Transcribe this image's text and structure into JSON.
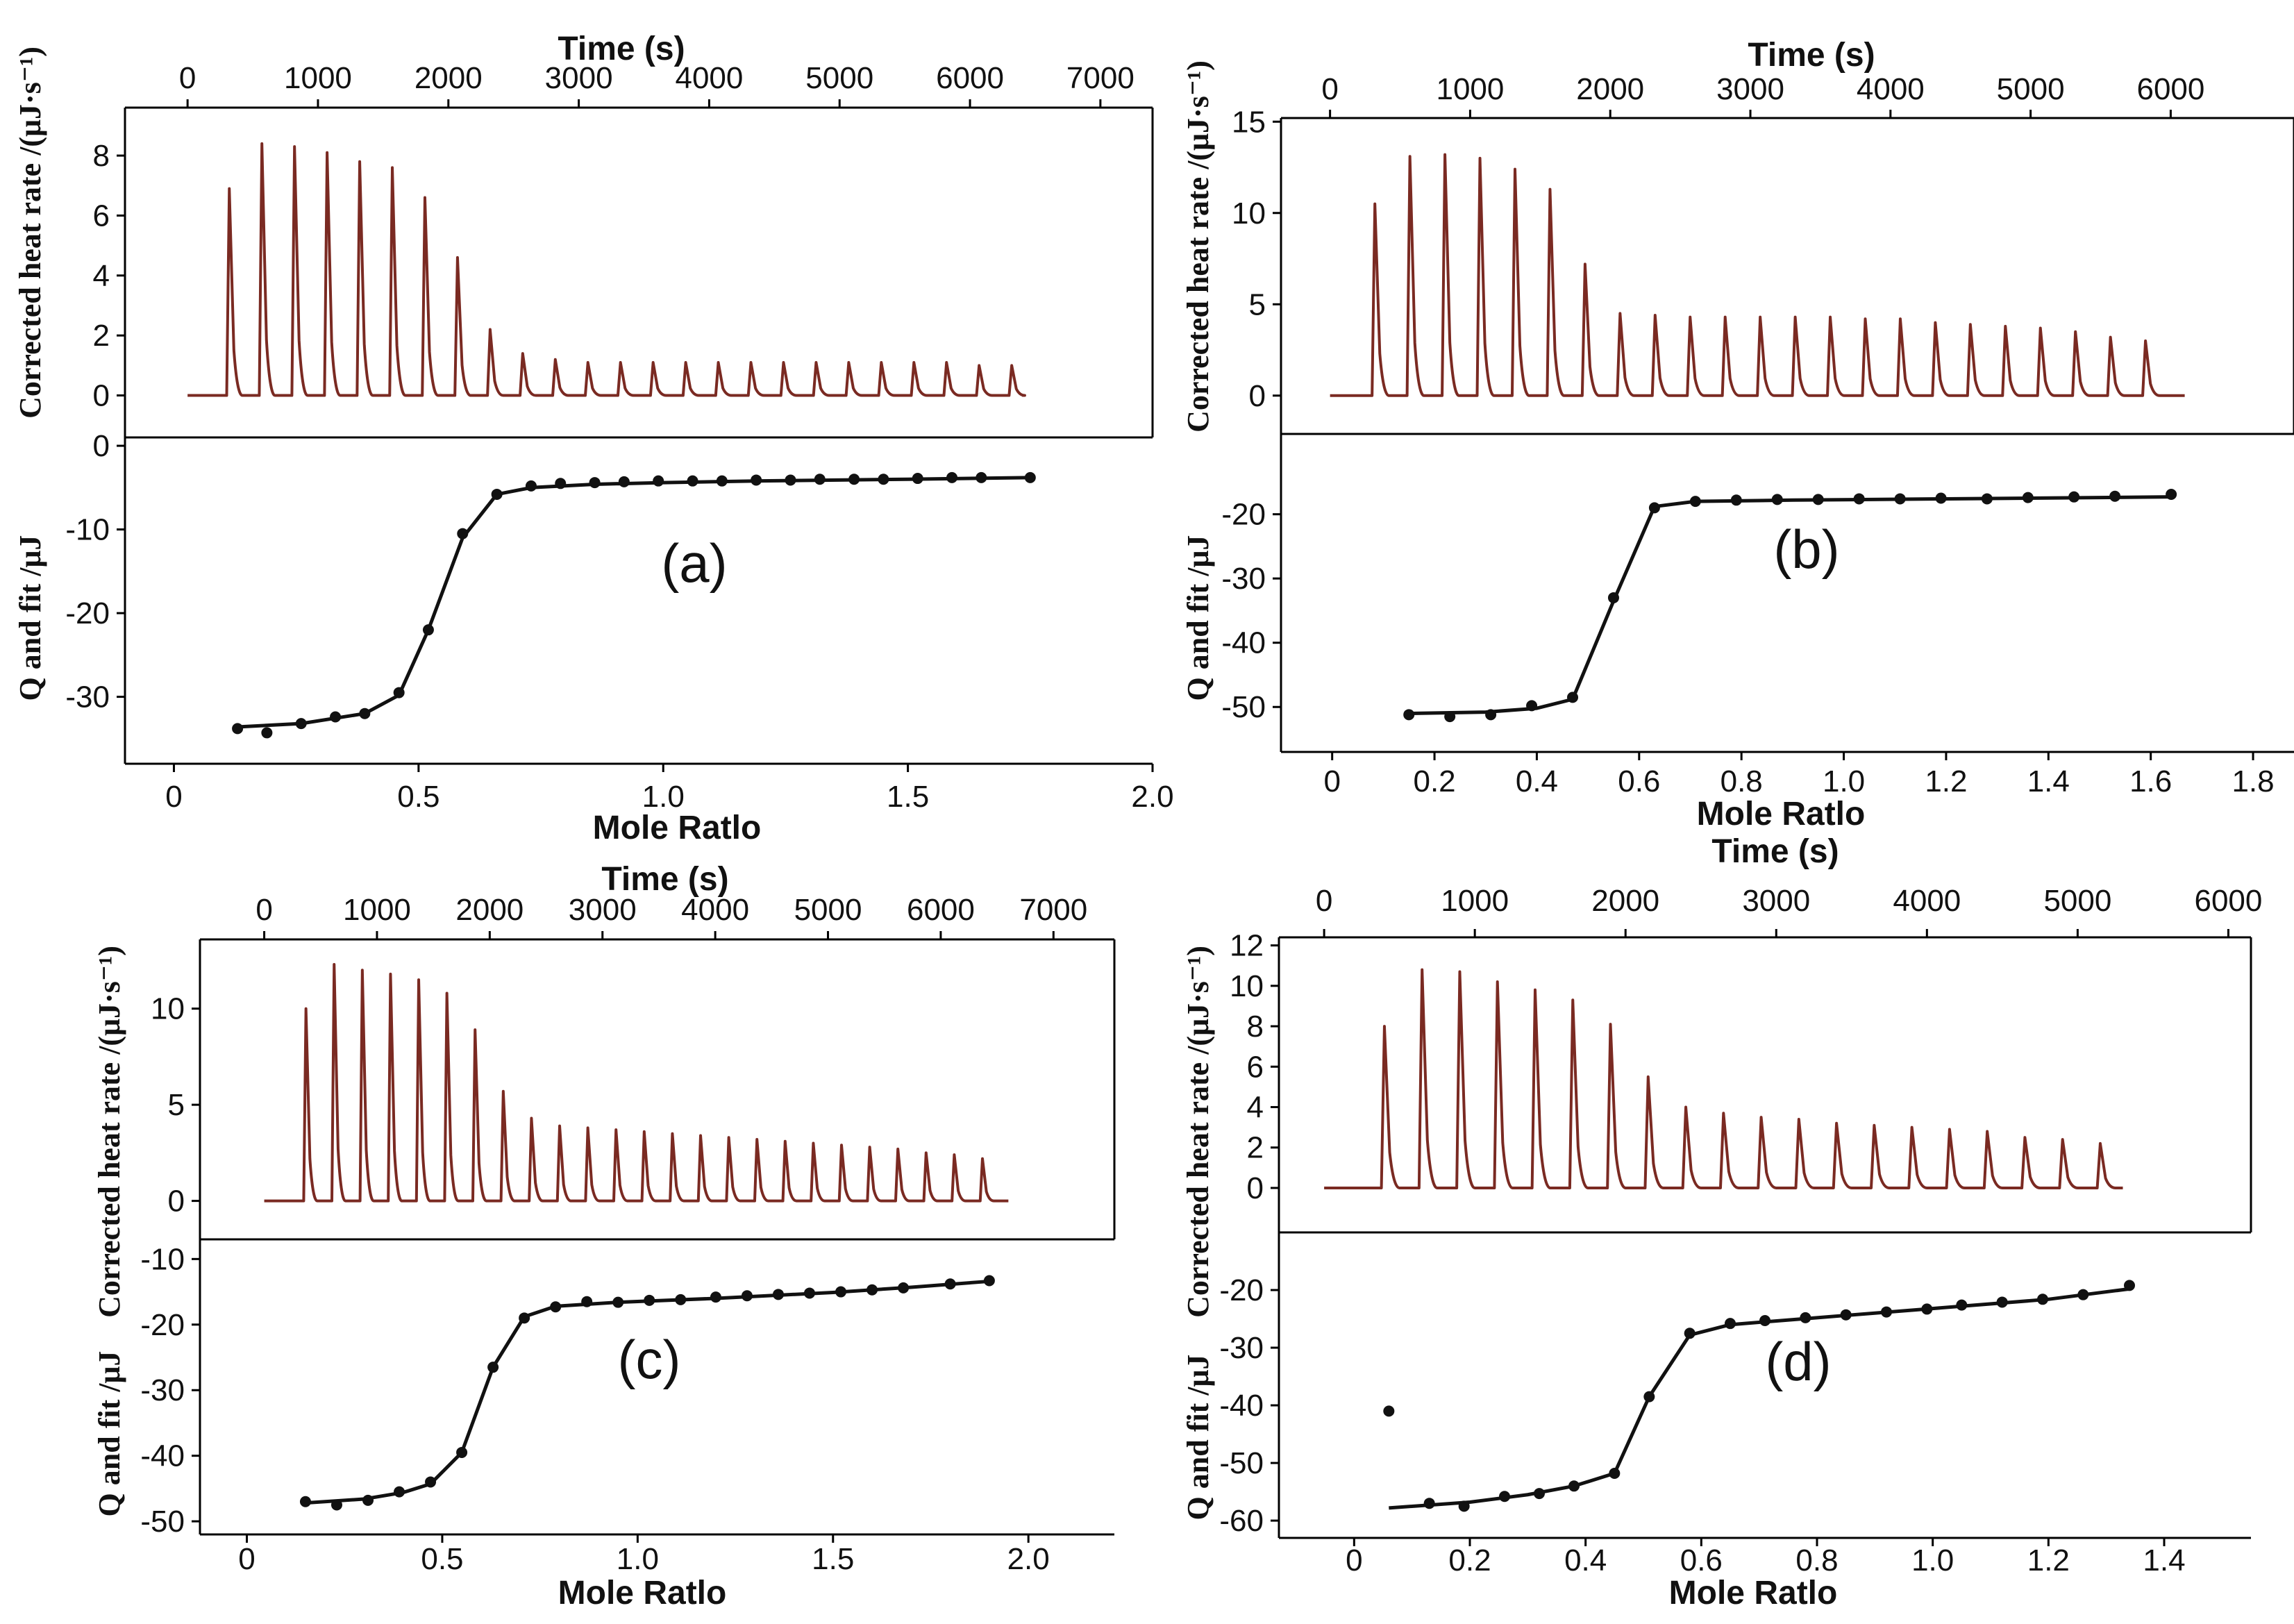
{
  "chart_data": [
    {
      "id": "a",
      "type": "line",
      "panel_label": "(a)",
      "top": {
        "title": "Time (s)",
        "ylabel": "Corrected heat rate /(μJ·s⁻¹)",
        "xlim": [
          -480,
          7400
        ],
        "ylim": [
          -1.4,
          9.6
        ],
        "xticks": [
          0,
          1000,
          2000,
          3000,
          4000,
          5000,
          6000,
          7000
        ],
        "xtick_labels": [
          "0",
          "1000",
          "2000",
          "3000",
          "4000",
          "5000",
          "6000",
          "7000"
        ],
        "yticks": [
          0,
          2,
          4,
          6,
          8
        ],
        "ytick_labels": [
          "0",
          "2",
          "4",
          "6",
          "8"
        ],
        "series": {
          "name": "Corrected heat rate",
          "color": "#7a2a22",
          "start_time": 0,
          "end_time": 6400,
          "peak_times": [
            300,
            550,
            800,
            1050,
            1300,
            1550,
            1800,
            2050,
            2300,
            2550,
            2800,
            3050,
            3300,
            3550,
            3800,
            4050,
            4300,
            4550,
            4800,
            5050,
            5300,
            5550,
            5800,
            6050,
            6300
          ],
          "peak_heights": [
            6.9,
            8.4,
            8.3,
            8.1,
            7.8,
            7.6,
            6.6,
            4.6,
            2.2,
            1.4,
            1.2,
            1.1,
            1.1,
            1.1,
            1.1,
            1.1,
            1.1,
            1.1,
            1.1,
            1.1,
            1.1,
            1.1,
            1.1,
            1.0,
            1.0
          ]
        }
      },
      "bottom": {
        "xlabel": "Mole Ratlo",
        "ylabel": "Q and fit /μJ",
        "xlim": [
          -0.1,
          2.0
        ],
        "ylim": [
          -38,
          1
        ],
        "xticks": [
          0,
          0.5,
          1.0,
          1.5,
          2.0
        ],
        "xtick_labels": [
          "0",
          "0.5",
          "1.0",
          "1.5",
          "2.0"
        ],
        "yticks": [
          0,
          -10,
          -20,
          -30
        ],
        "ytick_labels": [
          "0",
          "-10",
          "-20",
          "-30"
        ],
        "points_x": [
          0.13,
          0.19,
          0.26,
          0.33,
          0.39,
          0.46,
          0.52,
          0.59,
          0.66,
          0.73,
          0.79,
          0.86,
          0.92,
          0.99,
          1.06,
          1.12,
          1.19,
          1.26,
          1.32,
          1.39,
          1.45,
          1.52,
          1.59,
          1.65,
          1.75
        ],
        "points_y": [
          -33.8,
          -34.3,
          -33.2,
          -32.4,
          -32.0,
          -29.5,
          -22.0,
          -10.5,
          -5.8,
          -4.8,
          -4.5,
          -4.4,
          -4.3,
          -4.2,
          -4.2,
          -4.2,
          -4.1,
          -4.1,
          -4.0,
          -4.0,
          -4.0,
          -3.9,
          -3.8,
          -3.8,
          -3.8
        ],
        "fit_x": [
          0.13,
          0.26,
          0.39,
          0.46,
          0.52,
          0.59,
          0.66,
          0.73,
          0.86,
          1.0,
          1.2,
          1.5,
          1.75
        ],
        "fit_y": [
          -33.6,
          -33.2,
          -32.0,
          -29.8,
          -22.0,
          -11.0,
          -5.8,
          -5.0,
          -4.6,
          -4.4,
          -4.2,
          -4.0,
          -3.8
        ]
      }
    },
    {
      "id": "b",
      "type": "line",
      "panel_label": "(b)",
      "top": {
        "title": "Time (s)",
        "ylabel": "Corrected heat rate /(μJ·s⁻¹)",
        "xlim": [
          -350,
          6880
        ],
        "ylim": [
          -2.1,
          15.2
        ],
        "xticks": [
          0,
          1000,
          2000,
          3000,
          4000,
          5000,
          6000
        ],
        "xtick_labels": [
          "0",
          "1000",
          "2000",
          "3000",
          "4000",
          "5000",
          "6000"
        ],
        "yticks": [
          0,
          5,
          10,
          15
        ],
        "ytick_labels": [
          "0",
          "5",
          "10",
          "15"
        ],
        "series": {
          "name": "Corrected heat rate",
          "color": "#7a2a22",
          "start_time": 0,
          "end_time": 6100,
          "peak_times": [
            300,
            550,
            800,
            1050,
            1300,
            1550,
            1800,
            2050,
            2300,
            2550,
            2800,
            3050,
            3300,
            3550,
            3800,
            4050,
            4300,
            4550,
            4800,
            5050,
            5300,
            5550,
            5800
          ],
          "peak_heights": [
            10.5,
            13.1,
            13.2,
            13.0,
            12.4,
            11.3,
            7.2,
            4.5,
            4.4,
            4.3,
            4.3,
            4.3,
            4.3,
            4.3,
            4.2,
            4.2,
            4.0,
            3.9,
            3.8,
            3.7,
            3.5,
            3.2,
            3.0
          ]
        }
      },
      "bottom": {
        "xlabel": "Mole Ratlo",
        "ylabel": "Q and fit /μJ",
        "xlim": [
          -0.1,
          1.88
        ],
        "ylim": [
          -57,
          -7.5
        ],
        "xticks": [
          0,
          0.2,
          0.4,
          0.6,
          0.8,
          1.0,
          1.2,
          1.4,
          1.6,
          1.8
        ],
        "xtick_labels": [
          "0",
          "0.2",
          "0.4",
          "0.6",
          "0.8",
          "1.0",
          "1.2",
          "1.4",
          "1.6",
          "1.8"
        ],
        "yticks": [
          -20,
          -30,
          -40,
          -50
        ],
        "ytick_labels": [
          "-20",
          "-30",
          "-40",
          "-50"
        ],
        "points_x": [
          0.15,
          0.23,
          0.31,
          0.39,
          0.47,
          0.55,
          0.63,
          0.71,
          0.79,
          0.87,
          0.95,
          1.03,
          1.11,
          1.19,
          1.28,
          1.36,
          1.45,
          1.53,
          1.64
        ],
        "points_y": [
          -51.2,
          -51.5,
          -51.2,
          -49.8,
          -48.5,
          -33.0,
          -19.0,
          -18.0,
          -17.8,
          -17.7,
          -17.7,
          -17.6,
          -17.6,
          -17.5,
          -17.6,
          -17.4,
          -17.3,
          -17.2,
          -16.9
        ],
        "fit_x": [
          0.15,
          0.3,
          0.4,
          0.47,
          0.55,
          0.63,
          0.71,
          0.9,
          1.2,
          1.5,
          1.64
        ],
        "fit_y": [
          -51.0,
          -50.8,
          -50.2,
          -48.8,
          -33.5,
          -18.8,
          -18.0,
          -17.8,
          -17.6,
          -17.4,
          -17.3
        ]
      }
    },
    {
      "id": "c",
      "type": "line",
      "panel_label": "(c)",
      "top": {
        "title": "Time (s)",
        "ylabel": "Corrected heat rate /(μJ·s⁻¹)",
        "xlim": [
          -570,
          7540
        ],
        "ylim": [
          -2.0,
          13.6
        ],
        "xticks": [
          0,
          1000,
          2000,
          3000,
          4000,
          5000,
          6000,
          7000
        ],
        "xtick_labels": [
          "0",
          "1000",
          "2000",
          "3000",
          "4000",
          "5000",
          "6000",
          "7000"
        ],
        "yticks": [
          0,
          5,
          10
        ],
        "ytick_labels": [
          "0",
          "5",
          "10"
        ],
        "series": {
          "name": "Corrected heat rate",
          "color": "#7a2a22",
          "start_time": 0,
          "end_time": 6600,
          "peak_times": [
            350,
            600,
            850,
            1100,
            1350,
            1600,
            1850,
            2100,
            2350,
            2600,
            2850,
            3100,
            3350,
            3600,
            3850,
            4100,
            4350,
            4600,
            4850,
            5100,
            5350,
            5600,
            5850,
            6100,
            6350
          ],
          "peak_heights": [
            10.0,
            12.3,
            12.0,
            11.8,
            11.5,
            10.8,
            8.9,
            5.7,
            4.3,
            3.9,
            3.8,
            3.7,
            3.6,
            3.5,
            3.4,
            3.3,
            3.2,
            3.1,
            3.0,
            2.9,
            2.8,
            2.7,
            2.5,
            2.4,
            2.2
          ]
        }
      },
      "bottom": {
        "xlabel": "Mole Ratlo",
        "ylabel": "Q and fit /μJ",
        "xlim": [
          -0.12,
          2.22
        ],
        "ylim": [
          -52,
          -7
        ],
        "xticks": [
          0,
          0.5,
          1.0,
          1.5,
          2.0
        ],
        "xtick_labels": [
          "0",
          "0.5",
          "1.0",
          "1.5",
          "2.0"
        ],
        "yticks": [
          -10,
          -20,
          -30,
          -40,
          -50
        ],
        "ytick_labels": [
          "-10",
          "-20",
          "-30",
          "-40",
          "-50"
        ],
        "points_x": [
          0.15,
          0.23,
          0.31,
          0.39,
          0.47,
          0.55,
          0.63,
          0.71,
          0.79,
          0.87,
          0.95,
          1.03,
          1.11,
          1.2,
          1.28,
          1.36,
          1.44,
          1.52,
          1.6,
          1.68,
          1.8,
          1.9
        ],
        "points_y": [
          -47.0,
          -47.5,
          -46.8,
          -45.5,
          -44.0,
          -39.5,
          -26.5,
          -19.0,
          -17.3,
          -16.5,
          -16.6,
          -16.3,
          -16.2,
          -15.8,
          -15.6,
          -15.4,
          -15.2,
          -15.0,
          -14.7,
          -14.4,
          -13.8,
          -13.3
        ],
        "fit_x": [
          0.15,
          0.3,
          0.4,
          0.47,
          0.55,
          0.63,
          0.71,
          0.79,
          0.95,
          1.2,
          1.5,
          1.7,
          1.9
        ],
        "fit_y": [
          -47.2,
          -46.6,
          -45.6,
          -44.3,
          -39.5,
          -26.5,
          -18.8,
          -17.2,
          -16.6,
          -16.0,
          -15.1,
          -14.3,
          -13.4
        ]
      }
    },
    {
      "id": "d",
      "type": "line",
      "panel_label": "(d)",
      "top": {
        "title": "Time (s)",
        "ylabel": "Corrected heat rate /(μJ·s⁻¹)",
        "xlim": [
          -300,
          6150
        ],
        "ylim": [
          -2.2,
          12.4
        ],
        "xticks": [
          0,
          1000,
          2000,
          3000,
          4000,
          5000,
          6000
        ],
        "xtick_labels": [
          "0",
          "1000",
          "2000",
          "3000",
          "4000",
          "5000",
          "6000"
        ],
        "yticks": [
          0,
          2,
          4,
          6,
          8,
          10,
          12
        ],
        "ytick_labels": [
          "0",
          "2",
          "4",
          "6",
          "8",
          "10",
          "12"
        ],
        "series": {
          "name": "Corrected heat rate",
          "color": "#7a2a22",
          "start_time": 0,
          "end_time": 5300,
          "peak_times": [
            380,
            630,
            880,
            1130,
            1380,
            1630,
            1880,
            2130,
            2380,
            2630,
            2880,
            3130,
            3380,
            3630,
            3880,
            4130,
            4380,
            4630,
            4880,
            5130
          ],
          "peak_heights": [
            8.0,
            10.8,
            10.7,
            10.2,
            9.8,
            9.3,
            8.1,
            5.5,
            4.0,
            3.7,
            3.5,
            3.4,
            3.2,
            3.1,
            3.0,
            2.9,
            2.8,
            2.5,
            2.4,
            2.2
          ]
        }
      },
      "bottom": {
        "xlabel": "Mole Ratlo",
        "ylabel": "Q and fit /μJ",
        "xlim": [
          -0.13,
          1.55
        ],
        "ylim": [
          -63,
          -10
        ],
        "xticks": [
          0,
          0.2,
          0.4,
          0.6,
          0.8,
          1.0,
          1.2,
          1.4
        ],
        "xtick_labels": [
          "0",
          "0.2",
          "0.4",
          "0.6",
          "0.8",
          "1.0",
          "1.2",
          "1.4"
        ],
        "yticks": [
          -20,
          -30,
          -40,
          -50,
          -60
        ],
        "ytick_labels": [
          "-20",
          "-30",
          "-40",
          "-50",
          "-60"
        ],
        "points_x": [
          0.06,
          0.13,
          0.19,
          0.26,
          0.32,
          0.38,
          0.45,
          0.51,
          0.58,
          0.65,
          0.71,
          0.78,
          0.85,
          0.92,
          0.99,
          1.05,
          1.12,
          1.19,
          1.26,
          1.34
        ],
        "points_y": [
          -41.0,
          -57.0,
          -57.5,
          -55.8,
          -55.3,
          -54.0,
          -51.8,
          -38.5,
          -27.5,
          -25.8,
          -25.3,
          -24.8,
          -24.3,
          -23.8,
          -23.3,
          -22.6,
          -22.1,
          -21.6,
          -20.8,
          -19.2
        ],
        "fit_x": [
          0.06,
          0.2,
          0.3,
          0.38,
          0.45,
          0.51,
          0.58,
          0.65,
          0.8,
          1.0,
          1.2,
          1.34
        ],
        "fit_y": [
          -57.8,
          -56.8,
          -55.5,
          -54.0,
          -51.8,
          -38.5,
          -27.8,
          -26.0,
          -24.8,
          -23.2,
          -21.6,
          -19.8
        ]
      }
    }
  ]
}
